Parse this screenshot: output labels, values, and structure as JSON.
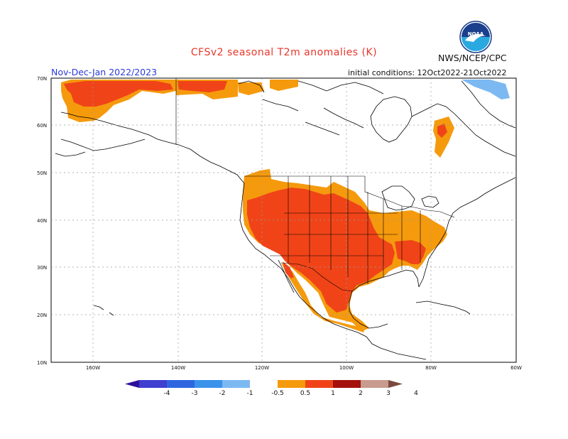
{
  "header": {
    "title": "CFSv2 seasonal T2m anomalies (K)",
    "period": "Nov-Dec-Jan 2022/2023",
    "agency": "NWS/NCEP/CPC",
    "initial_conditions": "initial conditions: 12Oct2022-21Oct2022",
    "logo_text": "NOAA"
  },
  "map": {
    "lat_labels": [
      "70N",
      "60N",
      "50N",
      "40N",
      "30N",
      "20N",
      "10N"
    ],
    "lon_labels": [
      "160W",
      "140W",
      "120W",
      "100W",
      "80W",
      "60W"
    ],
    "colors": {
      "ocean": "#ffffff",
      "coast": "#000000",
      "grid": "#9a9a9a"
    }
  },
  "colorbar": {
    "labels": [
      "-4",
      "-3",
      "-2",
      "-1",
      "-0.5",
      "0.5",
      "1",
      "2",
      "3",
      "4"
    ],
    "colors": [
      "#2d0f9a",
      "#3f3fd0",
      "#2f66e0",
      "#3a93ea",
      "#7cb9f2",
      "#ffffff",
      "#f59a0d",
      "#f04418",
      "#a4100c",
      "#c79b8e",
      "#7a4a3e"
    ]
  }
}
